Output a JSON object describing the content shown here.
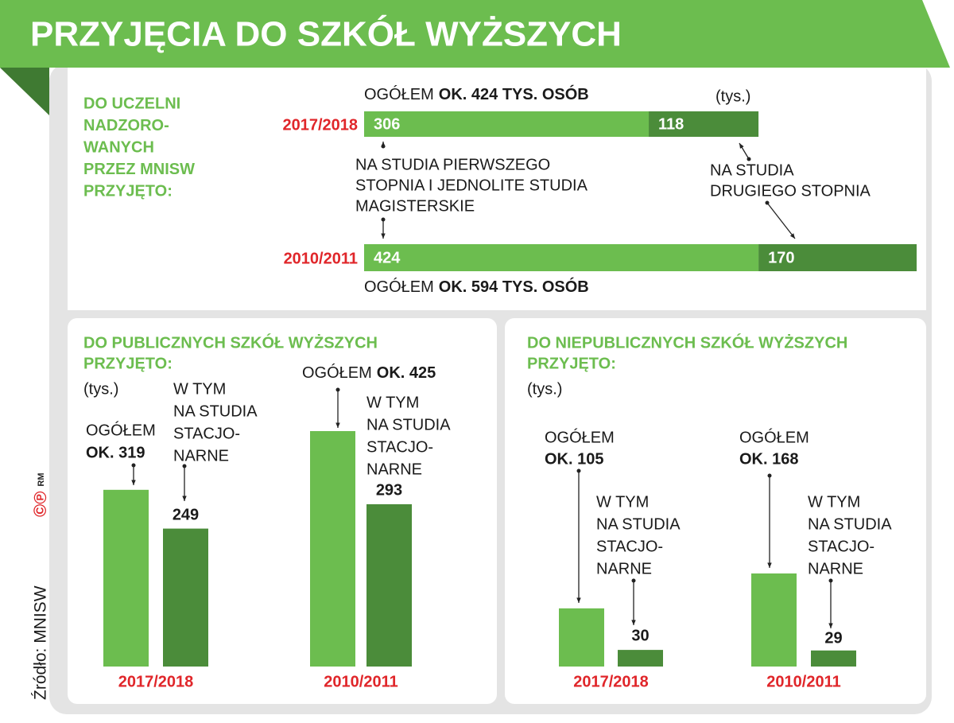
{
  "title": "PRZYJĘCIA DO SZKÓŁ WYŻSZYCH",
  "source": "Źródło: MNISW",
  "copyright": {
    "symbols": "©℗",
    "mark": "RM"
  },
  "chart_data": [
    {
      "type": "stacked_hbar",
      "title": [
        "DO UCZELNI",
        "NADZORO-",
        "WANYCH",
        "PRZEZ MNISW",
        "PRZYJĘTO:"
      ],
      "unit": "(tys.)",
      "categories": [
        "2017/2018",
        "2010/2011"
      ],
      "totals": [
        {
          "prefix": "OGÓŁEM",
          "label": "OK. 424 TYS. OSÓB"
        },
        {
          "prefix": "OGÓŁEM",
          "label": "OK. 594 TYS. OSÓB"
        }
      ],
      "series": [
        {
          "name": [
            "NA STUDIA PIERWSZEGO",
            "STOPNIA I JEDNOLITE STUDIA",
            "MAGISTERSKIE"
          ],
          "color": "#6cbd4f",
          "values": [
            306,
            424
          ]
        },
        {
          "name": [
            "NA STUDIA",
            "DRUGIEGO STOPNIA"
          ],
          "color": "#4b8c3a",
          "values": [
            118,
            170
          ]
        }
      ],
      "xlim": [
        0,
        594
      ]
    },
    {
      "type": "grouped_bar",
      "title": [
        "DO PUBLICZNYCH SZKÓŁ WYŻSZYCH",
        "PRZYJĘTO:"
      ],
      "unit": "(tys.)",
      "categories": [
        "2017/2018",
        "2010/2011"
      ],
      "series": [
        {
          "name": "OGÓŁEM",
          "color": "#6cbd4f",
          "values": [
            319,
            425
          ],
          "value_labels": [
            "OK. 319",
            "OK. 425"
          ]
        },
        {
          "name": [
            "W TYM",
            "NA STUDIA",
            "STACJO-",
            "NARNE"
          ],
          "color": "#4b8c3a",
          "values": [
            249,
            293
          ]
        }
      ],
      "ylim": [
        0,
        425
      ]
    },
    {
      "type": "grouped_bar",
      "title": [
        "DO NIEPUBLICZNYCH SZKÓŁ WYŻSZYCH",
        "PRZYJĘTO:"
      ],
      "unit": "(tys.)",
      "categories": [
        "2017/2018",
        "2010/2011"
      ],
      "series": [
        {
          "name": "OGÓŁEM",
          "color": "#6cbd4f",
          "values": [
            105,
            168
          ],
          "value_labels": [
            "OK. 105",
            "OK. 168"
          ]
        },
        {
          "name": [
            "W TYM",
            "NA STUDIA",
            "STACJO-",
            "NARNE"
          ],
          "color": "#4b8c3a",
          "values": [
            30,
            29
          ]
        }
      ],
      "ylim": [
        0,
        425
      ]
    }
  ]
}
